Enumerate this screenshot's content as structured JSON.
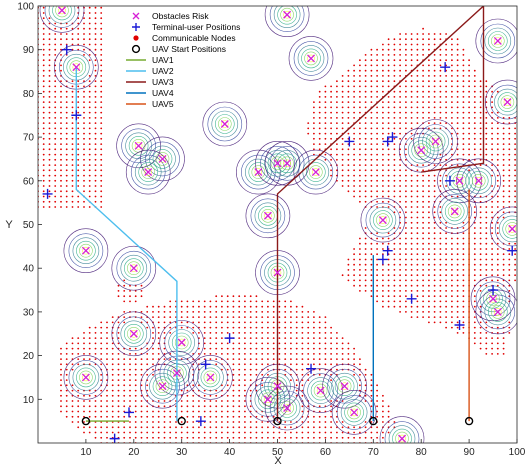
{
  "chart_data": {
    "type": "scatter",
    "xlabel": "X",
    "ylabel": "Y",
    "xlim": [
      0,
      100
    ],
    "ylim": [
      0,
      100
    ],
    "xticks": [
      10,
      20,
      30,
      40,
      50,
      60,
      70,
      80,
      90,
      100
    ],
    "yticks": [
      10,
      20,
      30,
      40,
      50,
      60,
      70,
      80,
      90,
      100
    ],
    "grid": false,
    "legend_position": "top-center",
    "legend": [
      {
        "label": "Obstacles Risk",
        "kind": "x",
        "color": "#d61fd6"
      },
      {
        "label": "Terminal-user Positions",
        "kind": "plus",
        "color": "#1a1ad6"
      },
      {
        "label": "Communicable Nodes",
        "kind": "dot",
        "color": "#e00000"
      },
      {
        "label": "UAV Start Positions",
        "kind": "circle",
        "color": "#000000"
      },
      {
        "label": "UAV1",
        "kind": "line",
        "color": "#77ac30"
      },
      {
        "label": "UAV2",
        "kind": "line",
        "color": "#4dbeee"
      },
      {
        "label": "UAV3",
        "kind": "line",
        "color": "#8b1a1a"
      },
      {
        "label": "UAV4",
        "kind": "line",
        "color": "#0072bd"
      },
      {
        "label": "UAV5",
        "kind": "line",
        "color": "#d95319"
      }
    ],
    "obstacles": [
      [
        5,
        99
      ],
      [
        52,
        98
      ],
      [
        96,
        92
      ],
      [
        8,
        86
      ],
      [
        57,
        88
      ],
      [
        98,
        78
      ],
      [
        39,
        73
      ],
      [
        21,
        68
      ],
      [
        26,
        65
      ],
      [
        23,
        62
      ],
      [
        46,
        62
      ],
      [
        50,
        64
      ],
      [
        52,
        64
      ],
      [
        58,
        62
      ],
      [
        80,
        67
      ],
      [
        83,
        69
      ],
      [
        88,
        60
      ],
      [
        92,
        60
      ],
      [
        87,
        53
      ],
      [
        48,
        52
      ],
      [
        72,
        51
      ],
      [
        99,
        49
      ],
      [
        50,
        39
      ],
      [
        10,
        44
      ],
      [
        20,
        40
      ],
      [
        95,
        33
      ],
      [
        96,
        30
      ],
      [
        20,
        25
      ],
      [
        30,
        23
      ],
      [
        29,
        16
      ],
      [
        36,
        15
      ],
      [
        26,
        13
      ],
      [
        10,
        15
      ],
      [
        50,
        13
      ],
      [
        48,
        10
      ],
      [
        52,
        8
      ],
      [
        59,
        12
      ],
      [
        64,
        13
      ],
      [
        66,
        7
      ],
      [
        76,
        1
      ]
    ],
    "terminal_users": [
      [
        6,
        90
      ],
      [
        2,
        57
      ],
      [
        8,
        75
      ],
      [
        85,
        86
      ],
      [
        65,
        69
      ],
      [
        74,
        70
      ],
      [
        73,
        69
      ],
      [
        86,
        60
      ],
      [
        73,
        44
      ],
      [
        72,
        42
      ],
      [
        78,
        33
      ],
      [
        95,
        35
      ],
      [
        99,
        44
      ],
      [
        88,
        27
      ],
      [
        40,
        24
      ],
      [
        35,
        18
      ],
      [
        57,
        17
      ],
      [
        19,
        7
      ],
      [
        16,
        1
      ],
      [
        34,
        5
      ]
    ],
    "uav_starts": [
      [
        10,
        5
      ],
      [
        30,
        5
      ],
      [
        50,
        5
      ],
      [
        70,
        5
      ],
      [
        90,
        5
      ]
    ],
    "uav_paths": [
      {
        "name": "UAV1",
        "color": "#77ac30",
        "points": [
          [
            10,
            5
          ],
          [
            19,
            5
          ]
        ]
      },
      {
        "name": "UAV2",
        "color": "#4dbeee",
        "points": [
          [
            8,
            86
          ],
          [
            8,
            58
          ],
          [
            29,
            37
          ],
          [
            29,
            5
          ]
        ]
      },
      {
        "name": "UAV3",
        "color": "#8b1a1a",
        "points": [
          [
            50,
            5
          ],
          [
            50,
            57
          ],
          [
            93,
            100
          ],
          [
            93,
            64
          ],
          [
            80,
            62
          ]
        ]
      },
      {
        "name": "UAV4",
        "color": "#0072bd",
        "points": [
          [
            70,
            5
          ],
          [
            70,
            43
          ]
        ]
      },
      {
        "name": "UAV5",
        "color": "#d95319",
        "points": [
          [
            90,
            5
          ],
          [
            90,
            58
          ]
        ]
      }
    ],
    "comm_regions": [
      {
        "type": "rect",
        "x": [
          0,
          14
        ],
        "y": [
          54,
          100
        ]
      },
      {
        "type": "circle",
        "cx": 19,
        "cy": 35,
        "r": 3
      },
      {
        "type": "poly",
        "points": [
          [
            58,
            80
          ],
          [
            66,
            87
          ],
          [
            73,
            93
          ],
          [
            80,
            95
          ],
          [
            88,
            93
          ],
          [
            92,
            84
          ],
          [
            99,
            79
          ],
          [
            100,
            75
          ],
          [
            100,
            40
          ],
          [
            98,
            20
          ],
          [
            94,
            20
          ],
          [
            88,
            25
          ],
          [
            80,
            28
          ],
          [
            72,
            31
          ],
          [
            63,
            38
          ],
          [
            66,
            45
          ],
          [
            70,
            52
          ],
          [
            64,
            58
          ],
          [
            58,
            64
          ],
          [
            56,
            72
          ]
        ]
      },
      {
        "type": "poly",
        "points": [
          [
            4,
            22
          ],
          [
            10,
            26
          ],
          [
            18,
            30
          ],
          [
            30,
            33
          ],
          [
            42,
            34
          ],
          [
            52,
            33
          ],
          [
            60,
            29
          ],
          [
            66,
            22
          ],
          [
            70,
            15
          ],
          [
            74,
            7
          ],
          [
            76,
            0
          ],
          [
            40,
            0
          ],
          [
            12,
            0
          ],
          [
            4,
            8
          ]
        ]
      },
      {
        "type": "circle",
        "cx": 28,
        "cy": 17,
        "r": 5
      }
    ]
  }
}
